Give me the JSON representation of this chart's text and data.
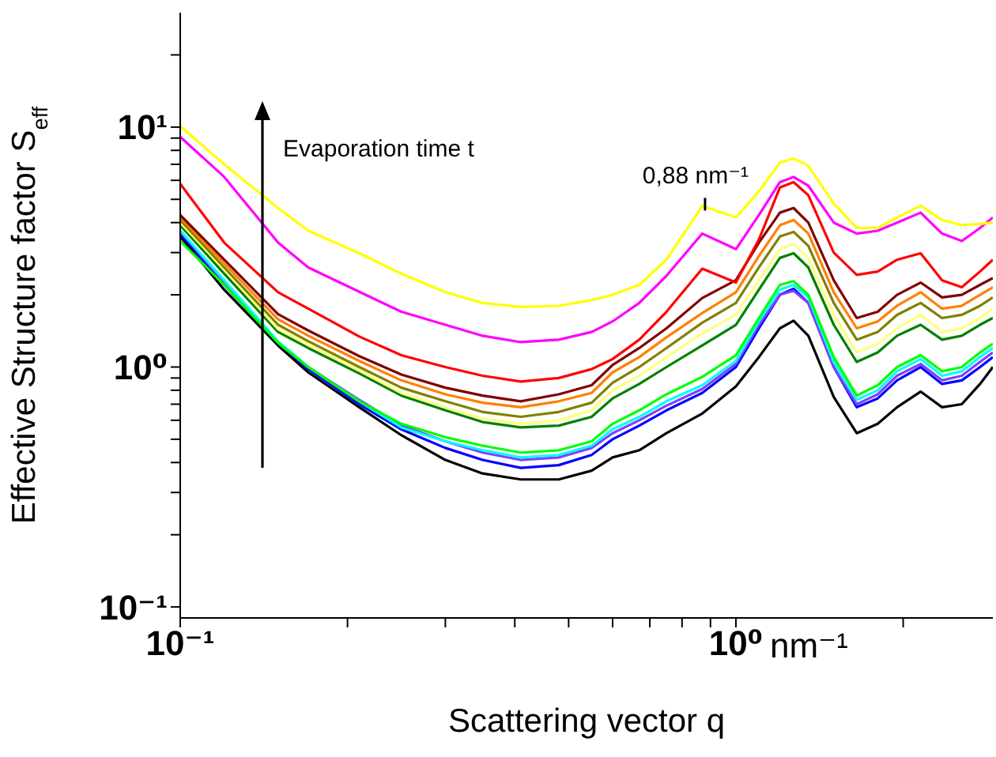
{
  "chart_data": {
    "type": "line",
    "xlabel": "Scattering vector q",
    "ylabel": "Effective Structure factor S$_{eff}$",
    "log": "xy",
    "grid": false,
    "legend": false,
    "xlim": [
      0.1,
      2.9
    ],
    "ylim": [
      0.09,
      30
    ],
    "xticks": [
      {
        "value": 0.1,
        "label": "10⁻¹"
      },
      {
        "value": 0.2,
        "label": null
      },
      {
        "value": 0.3,
        "label": null
      },
      {
        "value": 0.4,
        "label": null
      },
      {
        "value": 0.5,
        "label": null
      },
      {
        "value": 0.6,
        "label": null
      },
      {
        "value": 0.7,
        "label": null
      },
      {
        "value": 0.8,
        "label": null
      },
      {
        "value": 0.9,
        "label": null
      },
      {
        "value": 1,
        "label": "10⁰"
      },
      {
        "value": 2,
        "label": null
      }
    ],
    "yticks": [
      {
        "value": 0.1,
        "label": "10⁻¹"
      },
      {
        "value": 0.2,
        "label": null
      },
      {
        "value": 0.3,
        "label": null
      },
      {
        "value": 0.4,
        "label": null
      },
      {
        "value": 0.5,
        "label": null
      },
      {
        "value": 0.6,
        "label": null
      },
      {
        "value": 0.7,
        "label": null
      },
      {
        "value": 0.8,
        "label": null
      },
      {
        "value": 0.9,
        "label": null
      },
      {
        "value": 1,
        "label": "10⁰"
      },
      {
        "value": 2,
        "label": null
      },
      {
        "value": 3,
        "label": null
      },
      {
        "value": 4,
        "label": null
      },
      {
        "value": 5,
        "label": null
      },
      {
        "value": 6,
        "label": null
      },
      {
        "value": 7,
        "label": null
      },
      {
        "value": 8,
        "label": null
      },
      {
        "value": 9,
        "label": null
      },
      {
        "value": 10,
        "label": "10¹"
      },
      {
        "value": 20,
        "label": null
      }
    ],
    "x": [
      0.1,
      0.12,
      0.15,
      0.17,
      0.21,
      0.25,
      0.3,
      0.35,
      0.41,
      0.48,
      0.55,
      0.6,
      0.67,
      0.75,
      0.87,
      1.0,
      1.1,
      1.2,
      1.27,
      1.35,
      1.5,
      1.65,
      1.8,
      1.95,
      2.15,
      2.35,
      2.55,
      2.75,
      2.9
    ],
    "series": [
      {
        "color": "#000000",
        "values": [
          3.5,
          2.1,
          1.23,
          0.95,
          0.68,
          0.52,
          0.41,
          0.36,
          0.34,
          0.34,
          0.37,
          0.42,
          0.45,
          0.53,
          0.64,
          0.83,
          1.1,
          1.45,
          1.56,
          1.35,
          0.75,
          0.53,
          0.58,
          0.68,
          0.79,
          0.68,
          0.7,
          0.85,
          1.0
        ]
      },
      {
        "color": "#0000ff",
        "values": [
          3.6,
          2.2,
          1.26,
          0.98,
          0.7,
          0.55,
          0.46,
          0.41,
          0.38,
          0.39,
          0.43,
          0.5,
          0.57,
          0.66,
          0.78,
          1.0,
          1.45,
          2.0,
          2.12,
          1.85,
          1.0,
          0.68,
          0.74,
          0.88,
          1.0,
          0.85,
          0.88,
          1.0,
          1.1
        ]
      },
      {
        "color": "#8040ff",
        "values": [
          3.7,
          2.25,
          1.27,
          1.0,
          0.73,
          0.57,
          0.49,
          0.44,
          0.41,
          0.42,
          0.46,
          0.53,
          0.6,
          0.69,
          0.81,
          1.03,
          1.5,
          2.0,
          2.08,
          1.85,
          1.0,
          0.7,
          0.77,
          0.92,
          1.03,
          0.88,
          0.92,
          1.05,
          1.15
        ]
      },
      {
        "color": "#00ffff",
        "values": [
          3.7,
          2.3,
          1.28,
          1.0,
          0.72,
          0.56,
          0.49,
          0.45,
          0.42,
          0.43,
          0.47,
          0.55,
          0.62,
          0.72,
          0.84,
          1.06,
          1.55,
          2.1,
          2.2,
          1.95,
          1.05,
          0.73,
          0.8,
          0.96,
          1.08,
          0.92,
          0.96,
          1.1,
          1.2
        ]
      },
      {
        "color": "#00ff00",
        "values": [
          3.35,
          2.2,
          1.26,
          1.0,
          0.72,
          0.58,
          0.51,
          0.47,
          0.44,
          0.45,
          0.49,
          0.58,
          0.66,
          0.77,
          0.91,
          1.12,
          1.6,
          2.2,
          2.28,
          2.0,
          1.1,
          0.76,
          0.84,
          1.0,
          1.12,
          0.96,
          1.0,
          1.15,
          1.25
        ]
      },
      {
        "color": "#008000",
        "values": [
          3.9,
          2.45,
          1.4,
          1.2,
          0.94,
          0.76,
          0.66,
          0.59,
          0.56,
          0.57,
          0.62,
          0.74,
          0.85,
          1.0,
          1.23,
          1.5,
          2.1,
          2.85,
          2.98,
          2.6,
          1.5,
          1.05,
          1.15,
          1.35,
          1.5,
          1.3,
          1.35,
          1.5,
          1.6
        ]
      },
      {
        "color": "#ffff80",
        "values": [
          4.0,
          2.55,
          1.44,
          1.24,
          0.97,
          0.78,
          0.68,
          0.61,
          0.58,
          0.6,
          0.66,
          0.8,
          0.92,
          1.1,
          1.38,
          1.65,
          2.3,
          3.1,
          3.26,
          2.85,
          1.65,
          1.15,
          1.25,
          1.45,
          1.65,
          1.4,
          1.45,
          1.6,
          1.75
        ]
      },
      {
        "color": "#808000",
        "values": [
          4.1,
          2.6,
          1.5,
          1.28,
          1.0,
          0.82,
          0.72,
          0.65,
          0.62,
          0.65,
          0.71,
          0.86,
          1.0,
          1.2,
          1.53,
          1.85,
          2.6,
          3.5,
          3.66,
          3.2,
          1.85,
          1.3,
          1.4,
          1.65,
          1.85,
          1.6,
          1.65,
          1.8,
          1.95
        ]
      },
      {
        "color": "#ff8000",
        "values": [
          4.2,
          2.7,
          1.58,
          1.35,
          1.06,
          0.88,
          0.77,
          0.71,
          0.68,
          0.72,
          0.78,
          0.95,
          1.1,
          1.33,
          1.68,
          2.05,
          2.9,
          3.9,
          4.1,
          3.6,
          2.05,
          1.45,
          1.55,
          1.8,
          2.05,
          1.75,
          1.8,
          2.0,
          2.15
        ]
      },
      {
        "color": "#800000",
        "values": [
          4.3,
          2.8,
          1.66,
          1.42,
          1.11,
          0.93,
          0.82,
          0.76,
          0.72,
          0.77,
          0.84,
          1.02,
          1.2,
          1.45,
          1.94,
          2.3,
          3.3,
          4.4,
          4.6,
          4.0,
          2.3,
          1.6,
          1.7,
          2.0,
          2.25,
          1.95,
          2.0,
          2.2,
          2.35
        ]
      },
      {
        "color": "#ff0000",
        "values": [
          5.8,
          3.3,
          2.05,
          1.75,
          1.34,
          1.12,
          1.0,
          0.92,
          0.87,
          0.9,
          0.98,
          1.08,
          1.3,
          1.7,
          2.57,
          2.25,
          3.4,
          5.6,
          5.9,
          5.2,
          3.0,
          2.42,
          2.5,
          2.8,
          2.98,
          2.3,
          2.15,
          2.5,
          2.8
        ]
      },
      {
        "color": "#ff00ff",
        "values": [
          9.1,
          6.2,
          3.3,
          2.6,
          2.06,
          1.7,
          1.5,
          1.35,
          1.27,
          1.3,
          1.4,
          1.55,
          1.85,
          2.4,
          3.6,
          3.1,
          4.3,
          5.9,
          6.2,
          5.7,
          4.0,
          3.6,
          3.7,
          4.0,
          4.4,
          3.6,
          3.35,
          3.8,
          4.2
        ]
      },
      {
        "color": "#ffff00",
        "values": [
          10.1,
          7.0,
          4.6,
          3.7,
          2.98,
          2.45,
          2.05,
          1.85,
          1.78,
          1.8,
          1.9,
          2.0,
          2.2,
          2.8,
          4.7,
          4.2,
          5.4,
          7.1,
          7.4,
          6.9,
          4.8,
          3.8,
          3.8,
          4.2,
          4.7,
          4.1,
          3.9,
          3.95,
          4.0
        ]
      }
    ],
    "annotations": [
      "Evaporation time t",
      "nm⁻¹",
      {
        "text": "0,88 nm⁻¹",
        "x": 0.88,
        "y": 4.7
      }
    ]
  }
}
